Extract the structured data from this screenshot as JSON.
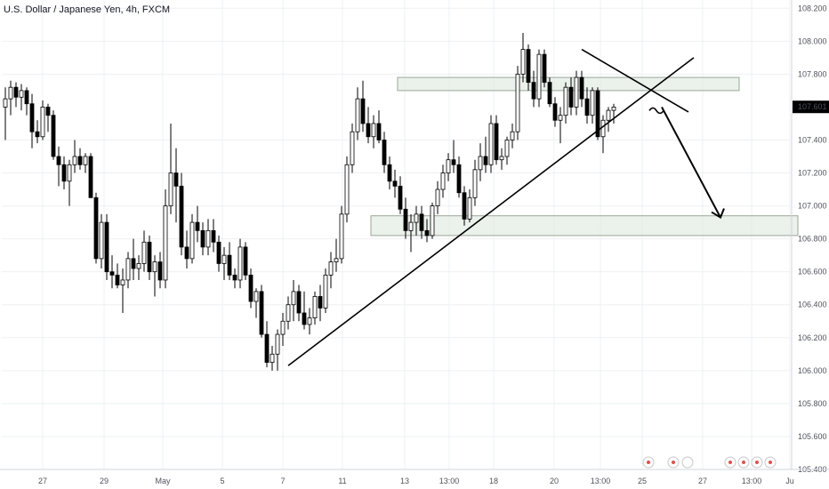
{
  "header": {
    "symbol_title": "U.S. Dollar / Japanese Yen, 4h, FXCM"
  },
  "price_axis": {
    "ticks": [
      "108.200",
      "108.000",
      "107.800",
      "107.601",
      "107.400",
      "107.200",
      "107.000",
      "106.800",
      "106.600",
      "106.400",
      "106.200",
      "106.000",
      "105.800",
      "105.600",
      "105.400"
    ],
    "current_price": "107.601",
    "current_price_color": "#000000"
  },
  "time_axis": {
    "labels": [
      "27",
      "29",
      "May",
      "5",
      "7",
      "11",
      "13",
      "13:00",
      "18",
      "20",
      "13:00",
      "25",
      "27",
      "13:00",
      "Ju"
    ]
  },
  "colors": {
    "up_candle": "#ffffff",
    "down_candle": "#000000",
    "wick": "#000000",
    "zone_fill": "#e3ebe3",
    "zone_stroke": "#9aa79a"
  },
  "chart_data": {
    "type": "candlestick",
    "title": "U.S. Dollar / Japanese Yen, 4h, FXCM",
    "ylim": [
      105.4,
      108.25
    ],
    "grid": true,
    "candles": [
      {
        "o": 107.6,
        "h": 107.72,
        "l": 107.4,
        "c": 107.65
      },
      {
        "o": 107.65,
        "h": 107.76,
        "l": 107.55,
        "c": 107.72
      },
      {
        "o": 107.72,
        "h": 107.75,
        "l": 107.6,
        "c": 107.66
      },
      {
        "o": 107.66,
        "h": 107.74,
        "l": 107.58,
        "c": 107.7
      },
      {
        "o": 107.7,
        "h": 107.72,
        "l": 107.55,
        "c": 107.62
      },
      {
        "o": 107.62,
        "h": 107.68,
        "l": 107.35,
        "c": 107.45
      },
      {
        "o": 107.45,
        "h": 107.52,
        "l": 107.38,
        "c": 107.42
      },
      {
        "o": 107.42,
        "h": 107.64,
        "l": 107.4,
        "c": 107.6
      },
      {
        "o": 107.6,
        "h": 107.62,
        "l": 107.45,
        "c": 107.55
      },
      {
        "o": 107.55,
        "h": 107.58,
        "l": 107.28,
        "c": 107.3
      },
      {
        "o": 107.3,
        "h": 107.36,
        "l": 107.12,
        "c": 107.25
      },
      {
        "o": 107.25,
        "h": 107.3,
        "l": 107.1,
        "c": 107.15
      },
      {
        "o": 107.15,
        "h": 107.28,
        "l": 107.0,
        "c": 107.25
      },
      {
        "o": 107.25,
        "h": 107.4,
        "l": 107.2,
        "c": 107.3
      },
      {
        "o": 107.3,
        "h": 107.35,
        "l": 107.22,
        "c": 107.25
      },
      {
        "o": 107.25,
        "h": 107.32,
        "l": 107.2,
        "c": 107.3
      },
      {
        "o": 107.3,
        "h": 107.32,
        "l": 107.05,
        "c": 107.05
      },
      {
        "o": 107.05,
        "h": 107.08,
        "l": 106.65,
        "c": 106.68
      },
      {
        "o": 106.68,
        "h": 106.95,
        "l": 106.62,
        "c": 106.9
      },
      {
        "o": 106.9,
        "h": 106.95,
        "l": 106.55,
        "c": 106.6
      },
      {
        "o": 106.6,
        "h": 106.7,
        "l": 106.5,
        "c": 106.58
      },
      {
        "o": 106.58,
        "h": 106.65,
        "l": 106.5,
        "c": 106.52
      },
      {
        "o": 106.52,
        "h": 106.62,
        "l": 106.35,
        "c": 106.55
      },
      {
        "o": 106.55,
        "h": 106.72,
        "l": 106.5,
        "c": 106.68
      },
      {
        "o": 106.68,
        "h": 106.8,
        "l": 106.55,
        "c": 106.62
      },
      {
        "o": 106.62,
        "h": 106.7,
        "l": 106.55,
        "c": 106.65
      },
      {
        "o": 106.65,
        "h": 106.85,
        "l": 106.6,
        "c": 106.78
      },
      {
        "o": 106.78,
        "h": 106.82,
        "l": 106.55,
        "c": 106.6
      },
      {
        "o": 106.6,
        "h": 106.7,
        "l": 106.45,
        "c": 106.66
      },
      {
        "o": 106.66,
        "h": 106.72,
        "l": 106.5,
        "c": 106.55
      },
      {
        "o": 106.55,
        "h": 107.1,
        "l": 106.5,
        "c": 107.0
      },
      {
        "o": 107.0,
        "h": 107.5,
        "l": 106.95,
        "c": 107.2
      },
      {
        "o": 107.2,
        "h": 107.35,
        "l": 106.9,
        "c": 107.12
      },
      {
        "o": 107.12,
        "h": 107.2,
        "l": 106.7,
        "c": 106.75
      },
      {
        "o": 106.75,
        "h": 106.85,
        "l": 106.62,
        "c": 106.68
      },
      {
        "o": 106.68,
        "h": 106.95,
        "l": 106.65,
        "c": 106.9
      },
      {
        "o": 106.9,
        "h": 107.0,
        "l": 106.78,
        "c": 106.85
      },
      {
        "o": 106.85,
        "h": 106.9,
        "l": 106.7,
        "c": 106.75
      },
      {
        "o": 106.75,
        "h": 106.92,
        "l": 106.7,
        "c": 106.85
      },
      {
        "o": 106.85,
        "h": 106.92,
        "l": 106.72,
        "c": 106.78
      },
      {
        "o": 106.78,
        "h": 106.82,
        "l": 106.6,
        "c": 106.65
      },
      {
        "o": 106.65,
        "h": 106.75,
        "l": 106.55,
        "c": 106.7
      },
      {
        "o": 106.7,
        "h": 106.78,
        "l": 106.55,
        "c": 106.58
      },
      {
        "o": 106.58,
        "h": 106.62,
        "l": 106.5,
        "c": 106.55
      },
      {
        "o": 106.55,
        "h": 106.8,
        "l": 106.5,
        "c": 106.75
      },
      {
        "o": 106.75,
        "h": 106.78,
        "l": 106.55,
        "c": 106.58
      },
      {
        "o": 106.58,
        "h": 106.62,
        "l": 106.38,
        "c": 106.42
      },
      {
        "o": 106.42,
        "h": 106.5,
        "l": 106.32,
        "c": 106.48
      },
      {
        "o": 106.48,
        "h": 106.52,
        "l": 106.2,
        "c": 106.22
      },
      {
        "o": 106.22,
        "h": 106.3,
        "l": 106.02,
        "c": 106.05
      },
      {
        "o": 106.05,
        "h": 106.15,
        "l": 106.0,
        "c": 106.1
      },
      {
        "o": 106.1,
        "h": 106.25,
        "l": 106.0,
        "c": 106.22
      },
      {
        "o": 106.22,
        "h": 106.35,
        "l": 106.15,
        "c": 106.3
      },
      {
        "o": 106.3,
        "h": 106.45,
        "l": 106.25,
        "c": 106.4
      },
      {
        "o": 106.4,
        "h": 106.55,
        "l": 106.3,
        "c": 106.48
      },
      {
        "o": 106.48,
        "h": 106.52,
        "l": 106.3,
        "c": 106.35
      },
      {
        "o": 106.35,
        "h": 106.48,
        "l": 106.25,
        "c": 106.28
      },
      {
        "o": 106.28,
        "h": 106.38,
        "l": 106.22,
        "c": 106.32
      },
      {
        "o": 106.32,
        "h": 106.48,
        "l": 106.28,
        "c": 106.45
      },
      {
        "o": 106.45,
        "h": 106.52,
        "l": 106.3,
        "c": 106.38
      },
      {
        "o": 106.38,
        "h": 106.62,
        "l": 106.35,
        "c": 106.58
      },
      {
        "o": 106.58,
        "h": 106.72,
        "l": 106.5,
        "c": 106.66
      },
      {
        "o": 106.66,
        "h": 106.8,
        "l": 106.6,
        "c": 106.68
      },
      {
        "o": 106.68,
        "h": 107.0,
        "l": 106.65,
        "c": 106.95
      },
      {
        "o": 106.95,
        "h": 107.3,
        "l": 106.9,
        "c": 107.25
      },
      {
        "o": 107.25,
        "h": 107.5,
        "l": 107.2,
        "c": 107.45
      },
      {
        "o": 107.45,
        "h": 107.72,
        "l": 107.4,
        "c": 107.65
      },
      {
        "o": 107.65,
        "h": 107.76,
        "l": 107.45,
        "c": 107.5
      },
      {
        "o": 107.5,
        "h": 107.6,
        "l": 107.38,
        "c": 107.42
      },
      {
        "o": 107.42,
        "h": 107.55,
        "l": 107.35,
        "c": 107.5
      },
      {
        "o": 107.5,
        "h": 107.58,
        "l": 107.38,
        "c": 107.4
      },
      {
        "o": 107.4,
        "h": 107.45,
        "l": 107.2,
        "c": 107.25
      },
      {
        "o": 107.25,
        "h": 107.3,
        "l": 107.1,
        "c": 107.15
      },
      {
        "o": 107.15,
        "h": 107.22,
        "l": 107.05,
        "c": 107.12
      },
      {
        "o": 107.12,
        "h": 107.18,
        "l": 106.95,
        "c": 106.98
      },
      {
        "o": 106.98,
        "h": 107.05,
        "l": 106.8,
        "c": 106.85
      },
      {
        "o": 106.85,
        "h": 106.95,
        "l": 106.72,
        "c": 106.9
      },
      {
        "o": 106.9,
        "h": 107.0,
        "l": 106.82,
        "c": 106.95
      },
      {
        "o": 106.95,
        "h": 107.0,
        "l": 106.8,
        "c": 106.85
      },
      {
        "o": 106.85,
        "h": 106.92,
        "l": 106.78,
        "c": 106.82
      },
      {
        "o": 106.82,
        "h": 107.02,
        "l": 106.8,
        "c": 107.0
      },
      {
        "o": 107.0,
        "h": 107.15,
        "l": 106.95,
        "c": 107.1
      },
      {
        "o": 107.1,
        "h": 107.25,
        "l": 107.05,
        "c": 107.2
      },
      {
        "o": 107.2,
        "h": 107.32,
        "l": 107.15,
        "c": 107.28
      },
      {
        "o": 107.28,
        "h": 107.4,
        "l": 107.2,
        "c": 107.25
      },
      {
        "o": 107.25,
        "h": 107.3,
        "l": 107.05,
        "c": 107.08
      },
      {
        "o": 107.08,
        "h": 107.12,
        "l": 106.88,
        "c": 106.92
      },
      {
        "o": 106.92,
        "h": 107.1,
        "l": 106.9,
        "c": 107.05
      },
      {
        "o": 107.05,
        "h": 107.28,
        "l": 107.0,
        "c": 107.22
      },
      {
        "o": 107.22,
        "h": 107.38,
        "l": 107.15,
        "c": 107.3
      },
      {
        "o": 107.3,
        "h": 107.42,
        "l": 107.2,
        "c": 107.25
      },
      {
        "o": 107.25,
        "h": 107.55,
        "l": 107.2,
        "c": 107.5
      },
      {
        "o": 107.5,
        "h": 107.55,
        "l": 107.25,
        "c": 107.28
      },
      {
        "o": 107.28,
        "h": 107.35,
        "l": 107.22,
        "c": 107.3
      },
      {
        "o": 107.3,
        "h": 107.42,
        "l": 107.25,
        "c": 107.4
      },
      {
        "o": 107.4,
        "h": 107.5,
        "l": 107.35,
        "c": 107.45
      },
      {
        "o": 107.45,
        "h": 107.85,
        "l": 107.4,
        "c": 107.8
      },
      {
        "o": 107.8,
        "h": 108.05,
        "l": 107.75,
        "c": 107.95
      },
      {
        "o": 107.95,
        "h": 107.98,
        "l": 107.7,
        "c": 107.75
      },
      {
        "o": 107.75,
        "h": 107.82,
        "l": 107.6,
        "c": 107.65
      },
      {
        "o": 107.65,
        "h": 107.95,
        "l": 107.6,
        "c": 107.92
      },
      {
        "o": 107.92,
        "h": 107.95,
        "l": 107.72,
        "c": 107.75
      },
      {
        "o": 107.75,
        "h": 107.78,
        "l": 107.6,
        "c": 107.62
      },
      {
        "o": 107.62,
        "h": 107.66,
        "l": 107.48,
        "c": 107.52
      },
      {
        "o": 107.52,
        "h": 107.6,
        "l": 107.38,
        "c": 107.55
      },
      {
        "o": 107.55,
        "h": 107.75,
        "l": 107.5,
        "c": 107.72
      },
      {
        "o": 107.72,
        "h": 107.78,
        "l": 107.55,
        "c": 107.6
      },
      {
        "o": 107.6,
        "h": 107.82,
        "l": 107.55,
        "c": 107.78
      },
      {
        "o": 107.78,
        "h": 107.82,
        "l": 107.6,
        "c": 107.65
      },
      {
        "o": 107.65,
        "h": 107.72,
        "l": 107.5,
        "c": 107.55
      },
      {
        "o": 107.55,
        "h": 107.72,
        "l": 107.5,
        "c": 107.7
      },
      {
        "o": 107.7,
        "h": 107.72,
        "l": 107.4,
        "c": 107.42
      },
      {
        "o": 107.42,
        "h": 107.55,
        "l": 107.32,
        "c": 107.52
      },
      {
        "o": 107.52,
        "h": 107.6,
        "l": 107.45,
        "c": 107.58
      },
      {
        "o": 107.58,
        "h": 107.62,
        "l": 107.5,
        "c": 107.6
      }
    ],
    "annotations": {
      "resistance_zone": {
        "x_from_index": 74,
        "x_to_index": 137,
        "y_top": 107.78,
        "y_bottom": 107.7
      },
      "support_zone": {
        "x_from_index": 69,
        "x_to_index": 148,
        "y_top": 106.94,
        "y_bottom": 106.82
      },
      "ascending_trendline": {
        "from": [
          53,
          106.03
        ],
        "to": [
          129,
          107.9
        ]
      },
      "descending_trendline": {
        "from": [
          108,
          107.95
        ],
        "to": [
          128,
          107.57
        ]
      },
      "projection_arrow": {
        "from": [
          123,
          107.6
        ],
        "to": [
          134,
          106.93
        ]
      }
    }
  }
}
